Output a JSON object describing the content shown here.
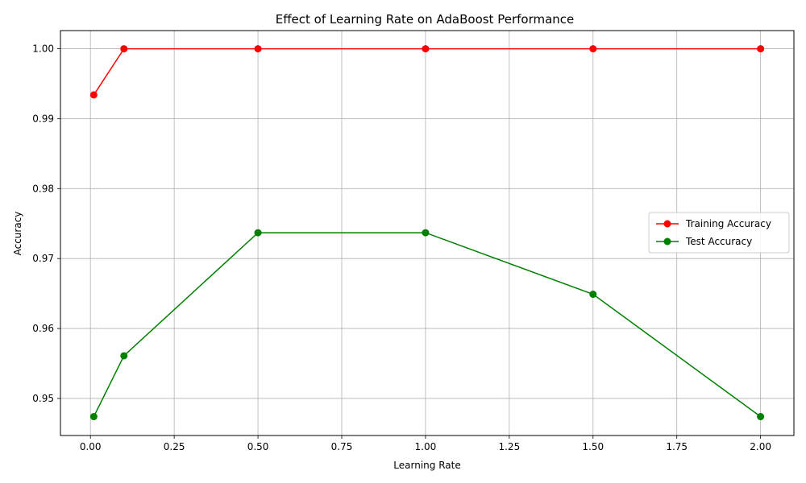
{
  "chart_data": {
    "type": "line",
    "title": "Effect of Learning Rate on AdaBoost Performance",
    "xlabel": "Learning Rate",
    "ylabel": "Accuracy",
    "x": [
      0.01,
      0.1,
      0.5,
      1.0,
      1.5,
      2.0
    ],
    "xlim": [
      -0.0895,
      2.0995
    ],
    "ylim": [
      0.9447,
      1.0026
    ],
    "xticks": [
      0.0,
      0.25,
      0.5,
      0.75,
      1.0,
      1.25,
      1.5,
      1.75,
      2.0
    ],
    "xtick_labels": [
      "0.00",
      "0.25",
      "0.50",
      "0.75",
      "1.00",
      "1.25",
      "1.50",
      "1.75",
      "2.00"
    ],
    "yticks": [
      0.95,
      0.96,
      0.97,
      0.98,
      0.99,
      1.0
    ],
    "ytick_labels": [
      "0.95",
      "0.96",
      "0.97",
      "0.98",
      "0.99",
      "1.00"
    ],
    "grid": true,
    "legend_position": "center-right",
    "series": [
      {
        "name": "Training Accuracy",
        "color": "#ff0000",
        "values": [
          0.9934,
          1.0,
          1.0,
          1.0,
          1.0,
          1.0
        ]
      },
      {
        "name": "Test Accuracy",
        "color": "#008000",
        "values": [
          0.9474,
          0.9561,
          0.9737,
          0.9737,
          0.9649,
          0.9474
        ]
      }
    ]
  }
}
